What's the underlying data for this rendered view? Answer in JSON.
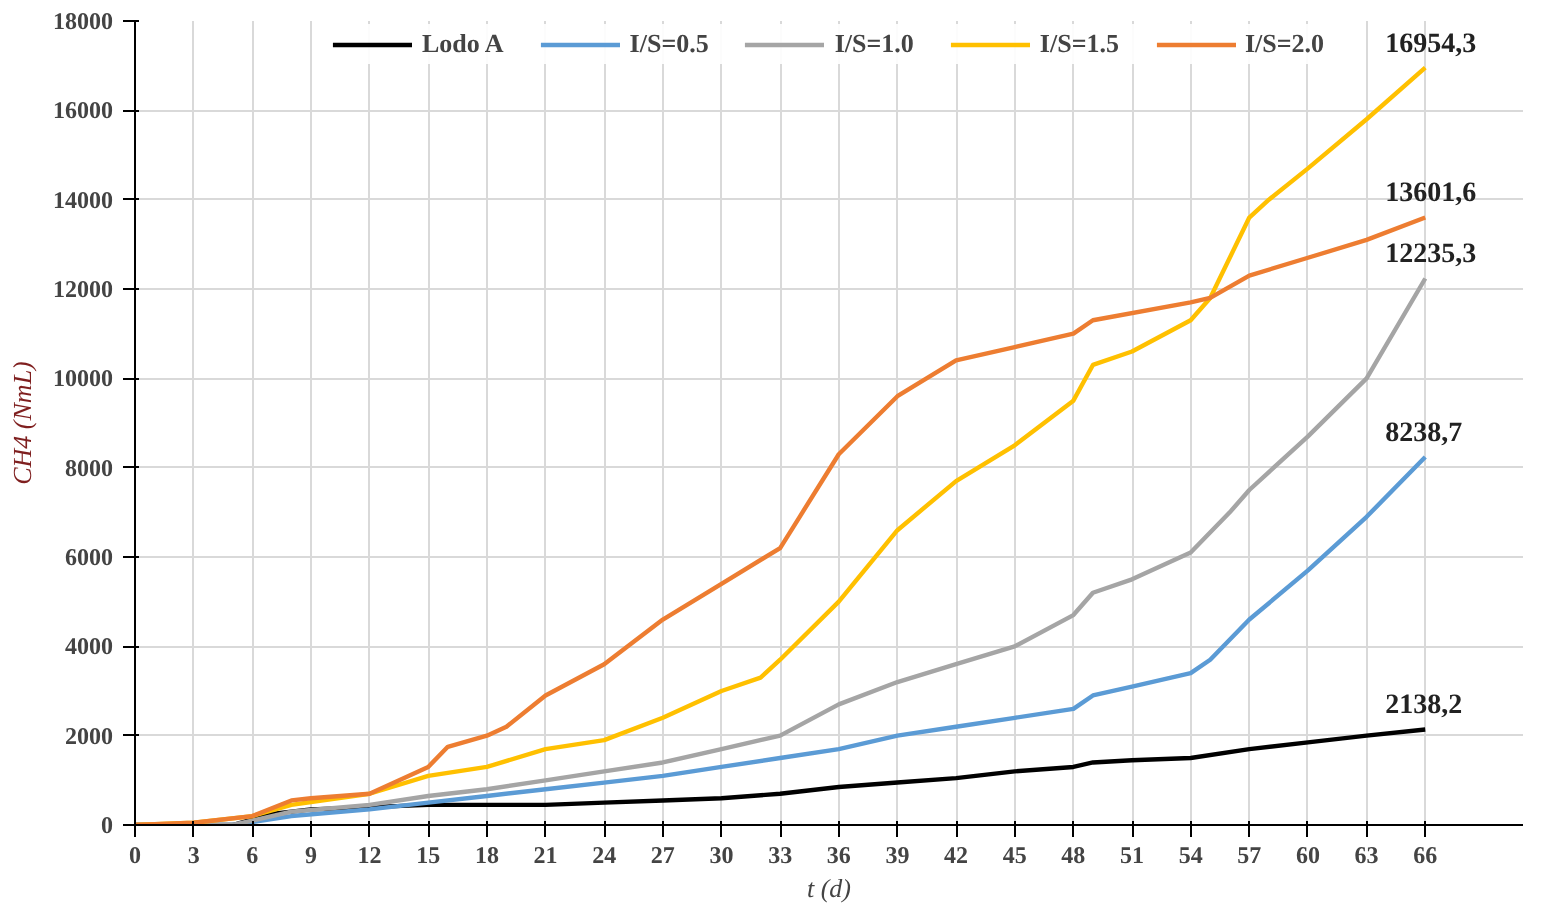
{
  "chart_data": {
    "type": "line",
    "xlabel": "t (d)",
    "ylabel": "CH4 (NmL)",
    "xlim": [
      0,
      71
    ],
    "xticks": [
      0,
      3,
      6,
      9,
      12,
      15,
      18,
      21,
      24,
      27,
      30,
      33,
      36,
      39,
      42,
      45,
      48,
      51,
      54,
      57,
      60,
      63,
      66
    ],
    "ylim": [
      0,
      18000
    ],
    "yticks": [
      0,
      2000,
      4000,
      6000,
      8000,
      10000,
      12000,
      14000,
      16000,
      18000
    ],
    "grid": true,
    "legend": "top",
    "marker": "none",
    "line_style": "solid",
    "series": [
      {
        "name": "Lodo A",
        "color": "#000000",
        "x": [
          0,
          5,
          7,
          9,
          12,
          15,
          18,
          21,
          24,
          27,
          30,
          33,
          36,
          39,
          42,
          45,
          48,
          49,
          51,
          54,
          57,
          60,
          63,
          66
        ],
        "values": [
          0,
          0,
          250,
          350,
          400,
          450,
          450,
          450,
          500,
          550,
          600,
          700,
          850,
          950,
          1050,
          1200,
          1300,
          1400,
          1450,
          1500,
          1700,
          1850,
          2000,
          2138.2
        ],
        "value_labels": [
          null,
          null,
          null,
          null,
          null,
          null,
          null,
          null,
          null,
          null,
          null,
          null,
          null,
          null,
          null,
          null,
          null,
          null,
          null,
          null,
          null,
          null,
          null,
          "2138,2"
        ]
      },
      {
        "name": "I/S=0.5",
        "color": "#5b9bd5",
        "x": [
          0,
          5,
          8,
          12,
          15,
          18,
          21,
          24,
          27,
          30,
          33,
          36,
          39,
          42,
          45,
          48,
          49,
          51,
          54,
          55,
          57,
          60,
          63,
          66
        ],
        "values": [
          0,
          0,
          200,
          350,
          500,
          650,
          800,
          950,
          1100,
          1300,
          1500,
          1700,
          2000,
          2200,
          2400,
          2600,
          2900,
          3100,
          3400,
          3700,
          4600,
          5700,
          6900,
          8238.7
        ],
        "value_labels": [
          null,
          null,
          null,
          null,
          null,
          null,
          null,
          null,
          null,
          null,
          null,
          null,
          null,
          null,
          null,
          null,
          null,
          null,
          null,
          null,
          null,
          null,
          null,
          "8238,7"
        ]
      },
      {
        "name": "I/S=1.0",
        "color": "#a5a5a5",
        "x": [
          0,
          5,
          8,
          12,
          15,
          18,
          21,
          24,
          27,
          30,
          33,
          36,
          39,
          42,
          45,
          48,
          49,
          51,
          54,
          56,
          57,
          60,
          63,
          66
        ],
        "values": [
          0,
          0,
          300,
          450,
          650,
          800,
          1000,
          1200,
          1400,
          1700,
          2000,
          2700,
          3200,
          3600,
          4000,
          4700,
          5200,
          5500,
          6100,
          7000,
          7500,
          8700,
          10000,
          12235.3
        ],
        "value_labels": [
          null,
          null,
          null,
          null,
          null,
          null,
          null,
          null,
          null,
          null,
          null,
          null,
          null,
          null,
          null,
          null,
          null,
          null,
          null,
          null,
          null,
          null,
          null,
          "12235,3"
        ]
      },
      {
        "name": "I/S=1.5",
        "color": "#ffc000",
        "x": [
          0,
          3,
          6,
          8,
          12,
          15,
          18,
          21,
          24,
          27,
          30,
          32,
          33,
          36,
          39,
          42,
          45,
          48,
          49,
          51,
          54,
          55,
          57,
          58,
          60,
          63,
          66
        ],
        "values": [
          0,
          50,
          200,
          450,
          700,
          1100,
          1300,
          1700,
          1900,
          2400,
          3000,
          3300,
          3700,
          5000,
          6600,
          7700,
          8500,
          9500,
          10300,
          10600,
          11300,
          11800,
          13600,
          14000,
          14700,
          15800,
          16954.3
        ],
        "value_labels": [
          null,
          null,
          null,
          null,
          null,
          null,
          null,
          null,
          null,
          null,
          null,
          null,
          null,
          null,
          null,
          null,
          null,
          null,
          null,
          null,
          null,
          null,
          null,
          null,
          null,
          null,
          "16954,3"
        ]
      },
      {
        "name": "I/S=2.0",
        "color": "#ed7d31",
        "x": [
          0,
          3,
          6,
          8,
          9,
          12,
          15,
          16,
          18,
          19,
          21,
          24,
          27,
          30,
          33,
          34,
          36,
          39,
          42,
          45,
          48,
          49,
          54,
          55,
          57,
          60,
          63,
          66
        ],
        "values": [
          0,
          50,
          200,
          550,
          600,
          700,
          1300,
          1750,
          2000,
          2200,
          2900,
          3600,
          4600,
          5400,
          6200,
          6900,
          8300,
          9600,
          10400,
          10700,
          11000,
          11300,
          11700,
          11800,
          12300,
          12700,
          13100,
          13601.6
        ],
        "value_labels": [
          null,
          null,
          null,
          null,
          null,
          null,
          null,
          null,
          null,
          null,
          null,
          null,
          null,
          null,
          null,
          null,
          null,
          null,
          null,
          null,
          null,
          null,
          null,
          null,
          null,
          null,
          null,
          "13601,6"
        ]
      }
    ]
  }
}
